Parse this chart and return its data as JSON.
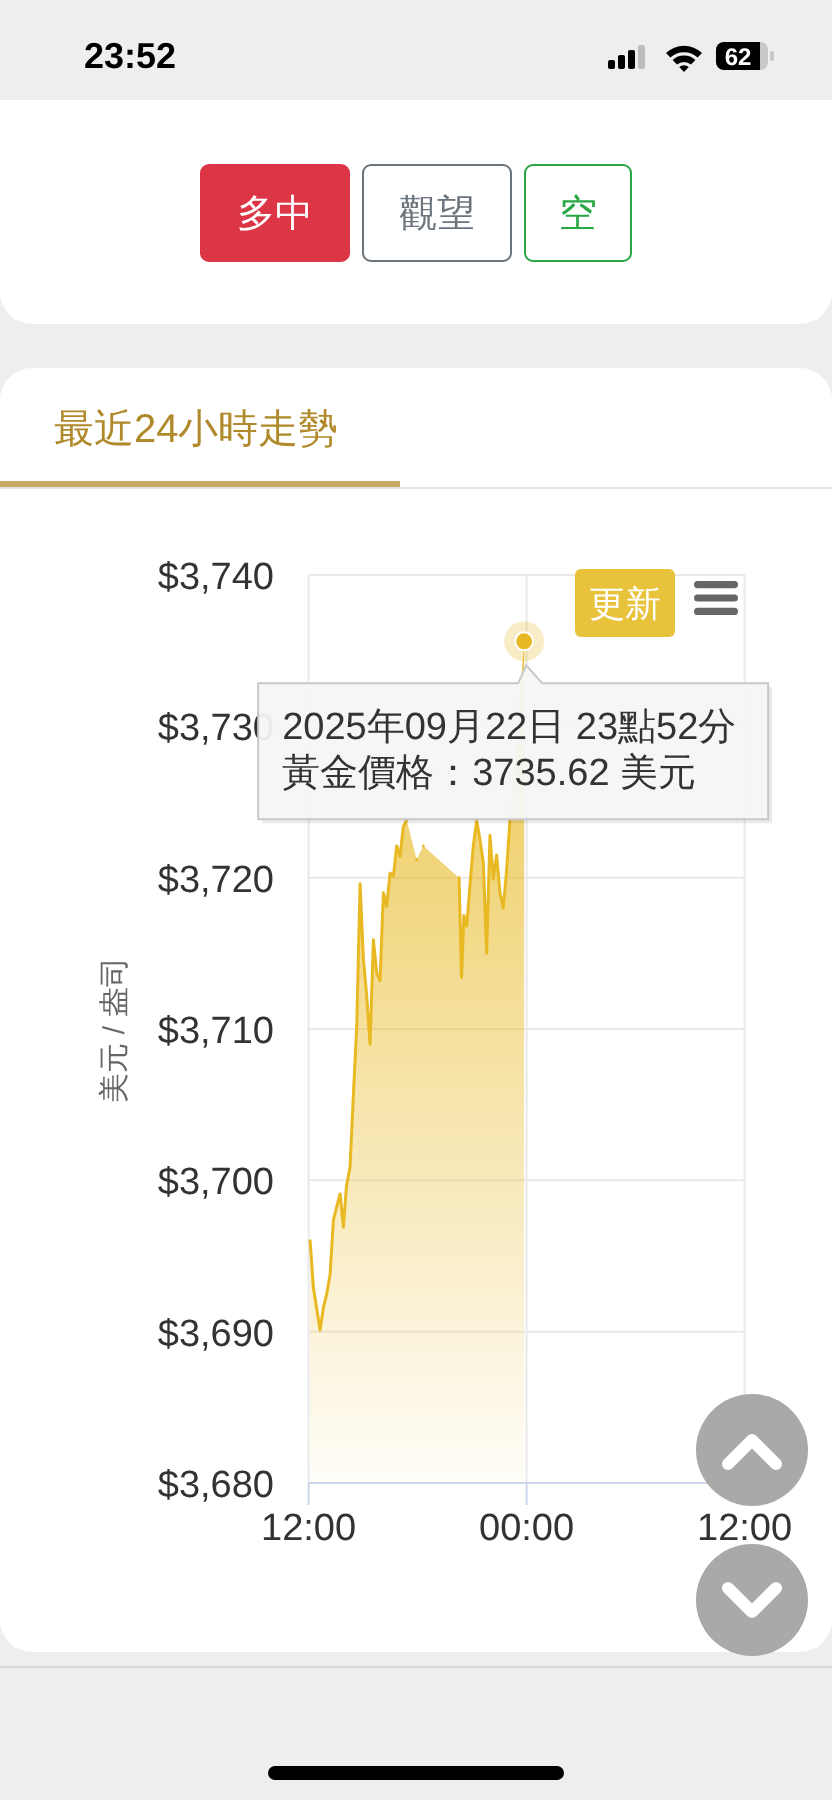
{
  "chart_data": {
    "type": "area",
    "title": "最近24小時走勢",
    "ylabel": "美元 / 盎司",
    "x": [
      "2025-09-22T12:05",
      "2025-09-22T12:16",
      "2025-09-22T12:38",
      "2025-09-22T12:49",
      "2025-09-22T13:00",
      "2025-09-22T13:11",
      "2025-09-22T13:22",
      "2025-09-22T13:44",
      "2025-09-22T13:55",
      "2025-09-22T14:05",
      "2025-09-22T14:17",
      "2025-09-22T14:28",
      "2025-09-22T14:39",
      "2025-09-22T14:50",
      "2025-09-22T15:01",
      "2025-09-22T15:11",
      "2025-09-22T15:23",
      "2025-09-22T15:34",
      "2025-09-22T15:45",
      "2025-09-22T15:56",
      "2025-09-22T16:07",
      "2025-09-22T16:18",
      "2025-09-22T16:29",
      "2025-09-22T16:40",
      "2025-09-22T16:51",
      "2025-09-22T17:02",
      "2025-09-22T17:13",
      "2025-09-22T17:24",
      "2025-09-22T17:35",
      "2025-09-22T17:46",
      "2025-09-22T17:57",
      "2025-09-22T18:08",
      "2025-09-22T18:19",
      "2025-09-22T18:30",
      "2025-09-22T18:41",
      "2025-09-22T18:52",
      "2025-09-22T19:03",
      "2025-09-22T19:14",
      "2025-09-22T19:27",
      "2025-09-22T19:40",
      "2025-09-22T19:54",
      "2025-09-22T20:07",
      "2025-09-22T20:17",
      "2025-09-22T20:25",
      "2025-09-22T20:33",
      "2025-09-22T20:42",
      "2025-09-22T20:53",
      "2025-09-22T21:04",
      "2025-09-22T21:15",
      "2025-09-22T21:26",
      "2025-09-22T21:37",
      "2025-09-22T21:48",
      "2025-09-22T21:59",
      "2025-09-22T22:10",
      "2025-09-22T22:21",
      "2025-09-22T22:32",
      "2025-09-22T22:43",
      "2025-09-22T22:54",
      "2025-09-22T23:05",
      "2025-09-22T23:16",
      "2025-09-22T23:27",
      "2025-09-22T23:38",
      "2025-09-22T23:52"
    ],
    "series": [
      {
        "color": "#e8b923",
        "values": [
          3696.0,
          3692.9,
          3690.1,
          3691.6,
          3692.5,
          3693.8,
          3697.4,
          3699.1,
          3696.9,
          3699.6,
          3700.9,
          3705.7,
          3710.2,
          3719.6,
          3714.6,
          3712.4,
          3709.0,
          3715.9,
          3713.7,
          3713.2,
          3719.0,
          3718.1,
          3720.3,
          3720.1,
          3722.1,
          3721.4,
          3723.4,
          3723.8,
          null,
          null,
          3721.2,
          null,
          3722.1,
          null,
          null,
          null,
          null,
          null,
          null,
          null,
          null,
          null,
          3720.0,
          3713.4,
          3717.5,
          3716.8,
          3719.5,
          3722.1,
          3723.8,
          3722.5,
          3721.0,
          3715.0,
          3722.8,
          3719.9,
          3721.5,
          3719.0,
          3718.0,
          3720.5,
          3723.8,
          null,
          null,
          null,
          3735.62
        ]
      }
    ],
    "xlim": [
      "2025-09-22T12:00",
      "2025-09-23T12:00"
    ],
    "xticks": [
      {
        "value": "2025-09-22T12:00",
        "label": "12:00"
      },
      {
        "value": "2025-09-23T00:00",
        "label": "00:00"
      },
      {
        "value": "2025-09-23T12:00",
        "label": "12:00"
      }
    ],
    "ylim": [
      3680,
      3740
    ],
    "yticks": [
      {
        "value": 3680,
        "label": "$3,680"
      },
      {
        "value": 3690,
        "label": "$3,690"
      },
      {
        "value": 3700,
        "label": "$3,700"
      },
      {
        "value": 3710,
        "label": "$3,710"
      },
      {
        "value": 3720,
        "label": "$3,720"
      },
      {
        "value": 3730,
        "label": "$3,730"
      },
      {
        "value": 3740,
        "label": "$3,740"
      }
    ],
    "grid": true,
    "annotations": [
      "23:52",
      "62",
      "多中",
      "觀望",
      "空",
      "更新",
      {
        "text": "2025年09月22日 23點52分",
        "x": "2025-09-22T23:52",
        "y": 3735.62
      },
      {
        "text": "黃金價格：3735.62 美元",
        "x": "2025-09-22T23:52",
        "y": 3735.62
      }
    ]
  }
}
